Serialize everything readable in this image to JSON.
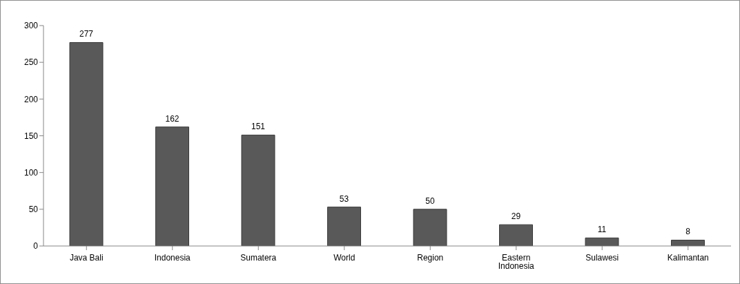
{
  "chart_data": {
    "type": "bar",
    "categories": [
      "Java Bali",
      "Indonesia",
      "Sumatera",
      "World",
      "Region",
      "Eastern Indonesia",
      "Sulawesi",
      "Kalimantan"
    ],
    "values": [
      277,
      162,
      151,
      53,
      50,
      29,
      11,
      8
    ],
    "color": "#595959",
    "ylim": [
      0,
      300
    ],
    "yticks": [
      0,
      50,
      100,
      150,
      200,
      250,
      300
    ],
    "grid": false,
    "data_labels": true
  }
}
